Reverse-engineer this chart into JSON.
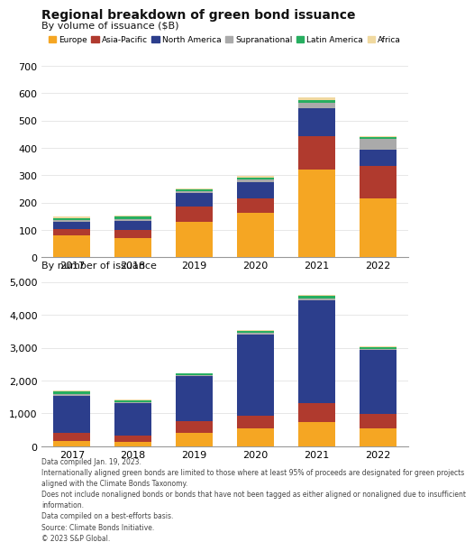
{
  "title": "Regional breakdown of green bond issuance",
  "subtitle1": "By volume of issuance ($B)",
  "subtitle2": "By number of issuance",
  "years": [
    2017,
    2018,
    2019,
    2020,
    2021,
    2022
  ],
  "regions": [
    "Europe",
    "Asia-Pacific",
    "North America",
    "Supranational",
    "Latin America",
    "Africa"
  ],
  "colors": [
    "#F5A623",
    "#B03A2E",
    "#2C3E8C",
    "#AAAAAA",
    "#27AE60",
    "#F0D9A0"
  ],
  "volume": {
    "Europe": [
      80,
      72,
      130,
      162,
      322,
      215
    ],
    "Asia-Pacific": [
      22,
      28,
      55,
      52,
      122,
      118
    ],
    "North America": [
      28,
      32,
      50,
      62,
      100,
      62
    ],
    "Supranational": [
      8,
      9,
      8,
      8,
      20,
      38
    ],
    "Latin America": [
      6,
      7,
      5,
      8,
      12,
      5
    ],
    "Africa": [
      5,
      6,
      5,
      5,
      8,
      5
    ]
  },
  "number": {
    "Europe": [
      155,
      140,
      395,
      545,
      725,
      555
    ],
    "Asia-Pacific": [
      245,
      195,
      360,
      370,
      580,
      430
    ],
    "North America": [
      1145,
      965,
      1385,
      2490,
      3125,
      1940
    ],
    "Supranational": [
      55,
      50,
      35,
      45,
      60,
      40
    ],
    "Latin America": [
      60,
      45,
      35,
      55,
      85,
      50
    ],
    "Africa": [
      40,
      30,
      15,
      25,
      35,
      25
    ]
  },
  "ylim_volume": [
    0,
    700
  ],
  "ylim_number": [
    0,
    5000
  ],
  "yticks_volume": [
    0,
    100,
    200,
    300,
    400,
    500,
    600,
    700
  ],
  "yticks_number": [
    0,
    1000,
    2000,
    3000,
    4000,
    5000
  ],
  "background_color": "#FFFFFF",
  "footnote": "Data compiled Jan. 19, 2023.\nInternationally aligned green bonds are limited to those where at least 95% of proceeds are designated for green projects\naligned with the Climate Bonds Taxonomy.\nDoes not include nonaligned bonds or bonds that have not been tagged as either aligned or nonaligned due to insufficient\ninformation.\nData compiled on a best-efforts basis.\nSource: Climate Bonds Initiative.\n© 2023 S&P Global."
}
